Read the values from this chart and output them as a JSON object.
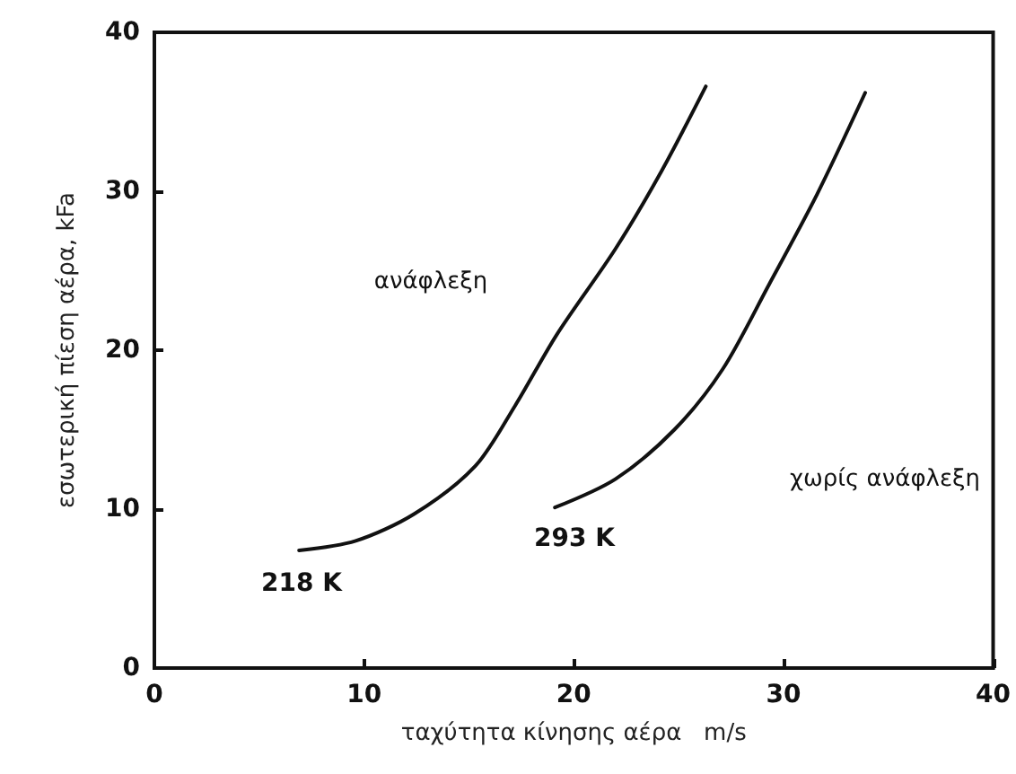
{
  "chart_data": {
    "type": "line",
    "xlabel": "ταχύτητα κίνησης αέρα   m/s",
    "ylabel": "εσωτερική πίεση αέρα, kFa",
    "xlim": [
      0,
      40
    ],
    "xticks": [
      0,
      10,
      20,
      30,
      40
    ],
    "ylim": [
      0,
      40
    ],
    "yticks": [
      0,
      10,
      20,
      30,
      40
    ],
    "grid": false,
    "marker": "none",
    "line_style": "solid",
    "series": [
      {
        "color": "#111111",
        "x": [
          6.9,
          9.6,
          12.4,
          15.3,
          17.2,
          19.2,
          22.0,
          24.2,
          26.3
        ],
        "values": [
          7.4,
          8.0,
          9.7,
          12.7,
          16.5,
          21.0,
          26.4,
          31.3,
          36.6
        ]
      },
      {
        "color": "#111111",
        "x": [
          19.1,
          22.0,
          24.8,
          27.1,
          29.3,
          31.6,
          33.9
        ],
        "values": [
          10.1,
          11.9,
          15.0,
          18.8,
          24.1,
          29.8,
          36.2
        ]
      }
    ],
    "annotations": [
      "ανάφλεξη",
      "218 K",
      "293 K",
      "χωρίς ανάφλεξη"
    ]
  }
}
